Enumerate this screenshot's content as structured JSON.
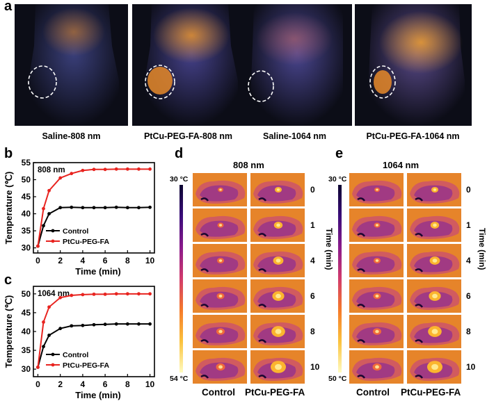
{
  "panel_a": {
    "label": "a",
    "images": [
      {
        "caption": "Saline-808 nm",
        "glow": "low"
      },
      {
        "caption": "PtCu-PEG-FA-808 nm",
        "glow": "high"
      },
      {
        "caption": "Saline-1064 nm",
        "glow": "low"
      },
      {
        "caption": "PtCu-PEG-FA-1064 nm",
        "glow": "high"
      }
    ]
  },
  "panel_b_label": "b",
  "panel_c_label": "c",
  "chart_data": [
    {
      "type": "line",
      "annotation": "808 nm",
      "xlabel": "Time (min)",
      "ylabel": "Temperature (℃)",
      "xlim": [
        -0.4,
        10.4
      ],
      "ylim": [
        28.5,
        55
      ],
      "xticks": [
        "0",
        "2",
        "4",
        "6",
        "8",
        "10"
      ],
      "yticks": [
        "30",
        "35",
        "40",
        "45",
        "50",
        "55"
      ],
      "x": [
        0,
        0.5,
        1,
        2,
        3,
        4,
        5,
        6,
        7,
        8,
        9,
        10
      ],
      "series": [
        {
          "name": "Control",
          "color": "#000000",
          "values": [
            30.5,
            36.5,
            40.0,
            41.8,
            41.9,
            41.8,
            41.8,
            41.8,
            41.9,
            41.8,
            41.8,
            41.9
          ]
        },
        {
          "name": "PtCu-PEG-FA",
          "color": "#e8231f",
          "values": [
            30.5,
            41.5,
            46.8,
            50.5,
            51.8,
            52.7,
            53.0,
            53.0,
            53.1,
            53.1,
            53.1,
            53.1
          ]
        }
      ]
    },
    {
      "type": "line",
      "annotation": "1064 nm",
      "xlabel": "Time (min)",
      "ylabel": "Temperature (℃)",
      "xlim": [
        -0.4,
        10.4
      ],
      "ylim": [
        28,
        52
      ],
      "xticks": [
        "0",
        "2",
        "4",
        "6",
        "8",
        "10"
      ],
      "yticks": [
        "30",
        "35",
        "40",
        "45",
        "50"
      ],
      "x": [
        0,
        0.5,
        1,
        2,
        3,
        4,
        5,
        6,
        7,
        8,
        9,
        10
      ],
      "series": [
        {
          "name": "Control",
          "color": "#000000",
          "values": [
            30.5,
            36.0,
            39.0,
            40.8,
            41.5,
            41.6,
            41.8,
            41.9,
            42.0,
            42.0,
            42.0,
            42.0
          ]
        },
        {
          "name": "PtCu-PEG-FA",
          "color": "#e8231f",
          "values": [
            30.5,
            42.5,
            46.5,
            49.0,
            49.6,
            49.8,
            49.9,
            49.9,
            50.0,
            50.0,
            50.0,
            50.0
          ]
        }
      ]
    }
  ],
  "panel_d": {
    "label": "d",
    "title": "808 nm",
    "scale_top": "30 °C",
    "scale_bottom": "54 °C",
    "time_axis": "Time (min)",
    "times": [
      "0",
      "1",
      "4",
      "6",
      "8",
      "10"
    ],
    "columns": [
      "Control",
      "PtCu-PEG-FA"
    ]
  },
  "panel_e": {
    "label": "e",
    "title": "1064 nm",
    "scale_top": "30 °C",
    "scale_bottom": "50 °C",
    "time_axis": "Time (min)",
    "times": [
      "0",
      "1",
      "4",
      "6",
      "8",
      "10"
    ],
    "columns": [
      "Control",
      "PtCu-PEG-FA"
    ]
  }
}
